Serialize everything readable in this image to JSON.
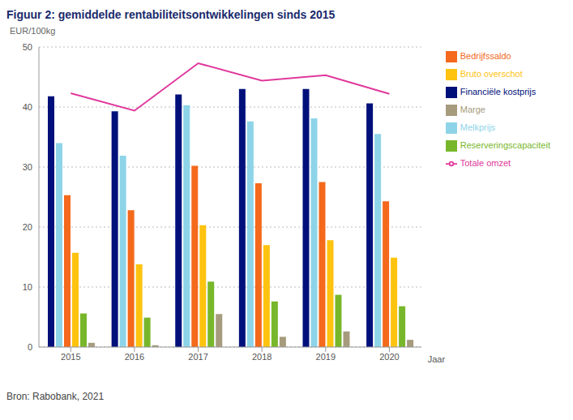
{
  "chart_data": {
    "type": "bar",
    "title": "Figuur 2: gemiddelde rentabiliteitsontwikkelingen sinds 2015",
    "y_label": "EUR/100kg",
    "x_label": "Jaar",
    "source": "Bron: Rabobank, 2021",
    "categories": [
      "2015",
      "2016",
      "2017",
      "2018",
      "2019",
      "2020"
    ],
    "series": [
      {
        "name": "Financiële kostprijs",
        "color": "#00107a",
        "type": "bar",
        "values": [
          41.8,
          39.3,
          42.1,
          43.0,
          43.0,
          40.6
        ]
      },
      {
        "name": "Melkprijs",
        "color": "#8ed4e8",
        "type": "bar",
        "values": [
          34.0,
          31.9,
          40.3,
          37.6,
          38.1,
          35.5
        ]
      },
      {
        "name": "Bedrijfssaldo",
        "color": "#f4691c",
        "type": "bar",
        "values": [
          25.3,
          22.8,
          30.2,
          27.3,
          27.5,
          24.3
        ]
      },
      {
        "name": "Bruto overschot",
        "color": "#fec30f",
        "type": "bar",
        "values": [
          15.7,
          13.8,
          20.3,
          17.0,
          17.8,
          14.9
        ]
      },
      {
        "name": "Reserveringscapaciteit",
        "color": "#78b72b",
        "type": "bar",
        "values": [
          5.6,
          4.9,
          10.9,
          7.6,
          8.7,
          6.8
        ]
      },
      {
        "name": "Marge",
        "color": "#a69b7c",
        "type": "bar",
        "values": [
          0.7,
          0.3,
          5.5,
          1.7,
          2.6,
          1.2
        ]
      },
      {
        "name": "Totale omzet",
        "color": "#e0389c",
        "type": "line",
        "values": [
          42.3,
          39.4,
          47.3,
          44.4,
          45.3,
          42.2
        ]
      }
    ],
    "ylim": [
      0,
      50
    ],
    "yticks": [
      0,
      10,
      20,
      30,
      40,
      50
    ],
    "grid": true,
    "legend": "right"
  }
}
